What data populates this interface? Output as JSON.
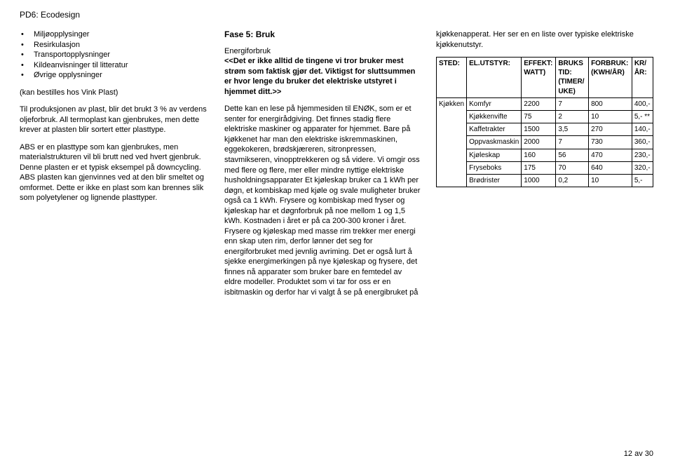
{
  "header": "PD6: Ecodesign",
  "col1": {
    "bullets": [
      "Miljøopplysinger",
      "Resirkulasjon",
      "Transportopplysninger",
      "Kildeanvisninger til litteratur",
      "Øvrige opplysninger"
    ],
    "p1": "(kan bestilles hos Vink Plast)",
    "p2": "Til produksjonen av plast, blir det brukt 3 % av verdens oljeforbruk. All termoplast kan gjenbrukes, men dette krever at plasten blir sortert etter plasttype.",
    "p3": "ABS er en plasttype som kan gjenbrukes, men materialstrukturen vil bli brutt ned ved hvert gjenbruk. Denne plasten er et typisk eksempel på downcycling. ABS plasten kan gjenvinnes ved at den blir smeltet og omformet. Dette er ikke en plast som kan brennes slik som polyetylener og lignende plasttyper."
  },
  "col2": {
    "title": "Fase 5: Bruk",
    "sub": "Energiforbruk",
    "bold1": "<<Det er ikke alltid de tingene vi tror bruker mest strøm som faktisk gjør det. Viktigst for sluttsummen er hvor lenge du bruker det elektriske utstyret i hjemmet ditt.>>",
    "p1": "Dette kan en lese på hjemmesiden til ENØK, som er et senter for energirådgiving.",
    "p2": "Det finnes stadig flere elektriske maskiner og apparater for hjemmet. Bare på kjøkkenet har man den elektriske iskremmaskinen, eggekokeren, brødskjæreren, sitronpressen, stavmikseren, vinopptrekkeren og så videre. Vi omgir oss med flere og flere, mer eller mindre nyttige elektriske husholdningsapparater",
    "p3": "Et kjøleskap bruker ca 1 kWh per døgn, et kombiskap med kjøle og svale muligheter bruker også ca 1 kWh. Frysere og kombiskap med fryser og kjøleskap har et døgnforbruk på noe mellom 1 og 1,5 kWh. Kostnaden i året er på ca 200-300 kroner i året. Frysere og kjøleskap med masse rim trekker mer energi enn skap uten rim, derfor lønner det seg for energiforbruket med jevnlig avriming. Det er også lurt å sjekke energimerkingen på nye kjøleskap og frysere, det finnes nå apparater som bruker bare en femtedel av eldre modeller. Produktet som vi tar for oss er en isbitmaskin og derfor har vi valgt å se på energibruket på"
  },
  "col3": {
    "intro": "kjøkkenapperat. Her ser en en liste over typiske elektriske kjøkkenutstyr.",
    "table": {
      "columns": [
        "STED:",
        "EL.UTSTYR:",
        "EFFEKT: WATT)",
        "BRUKS TID: (TIMER/ UKE)",
        "FORBRUK: (KWH/ÅR)",
        "KR/ÅR:"
      ],
      "rows": [
        [
          "Kjøkken",
          "Komfyr",
          "2200",
          "7",
          "800",
          "400,-"
        ],
        [
          "",
          "Kjøkkenvifte",
          "75",
          "2",
          "10",
          "5,- **"
        ],
        [
          "",
          "Kaffetrakter",
          "1500",
          "3,5",
          "270",
          "140,-"
        ],
        [
          "",
          "Oppvaskmaskin",
          "2000",
          "7",
          "730",
          "360,-"
        ],
        [
          "",
          "Kjøleskap",
          "160",
          "56",
          "470",
          "230,-"
        ],
        [
          "",
          "Fryseboks",
          "175",
          "70",
          "640",
          "320,-"
        ],
        [
          "",
          "Brødrister",
          "1000",
          "0,2",
          "10",
          "5,-"
        ]
      ]
    }
  },
  "footer": "12 av 30"
}
